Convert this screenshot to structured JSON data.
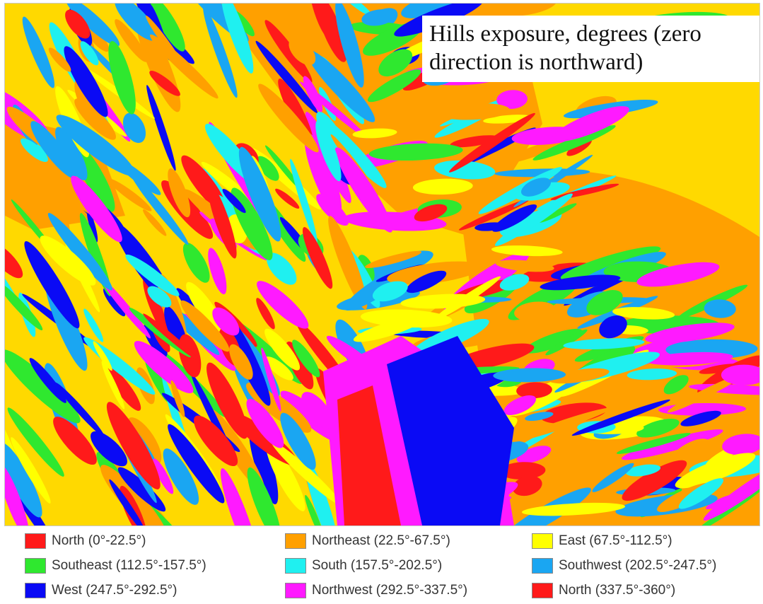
{
  "map": {
    "title": "Hills exposure, degrees (zero direction is northward)",
    "background_color": "#ffd900"
  },
  "legend": {
    "items": [
      {
        "label": "North (0°-22.5°)",
        "color": "#ff1a1a"
      },
      {
        "label": "Northeast (22.5°-67.5°)",
        "color": "#ffa000"
      },
      {
        "label": "East (67.5°-112.5°)",
        "color": "#ffff00"
      },
      {
        "label": "Southeast (112.5°-157.5°)",
        "color": "#2fe82f"
      },
      {
        "label": "South (157.5°-202.5°)",
        "color": "#1ff0f0"
      },
      {
        "label": "Southwest (202.5°-247.5°)",
        "color": "#1aa6f2"
      },
      {
        "label": "West (247.5°-292.5°)",
        "color": "#0a0af5"
      },
      {
        "label": "Northwest (292.5°-337.5°)",
        "color": "#ff1aff"
      },
      {
        "label": "North (337.5°-360°)",
        "color": "#ff1a1a"
      }
    ]
  }
}
